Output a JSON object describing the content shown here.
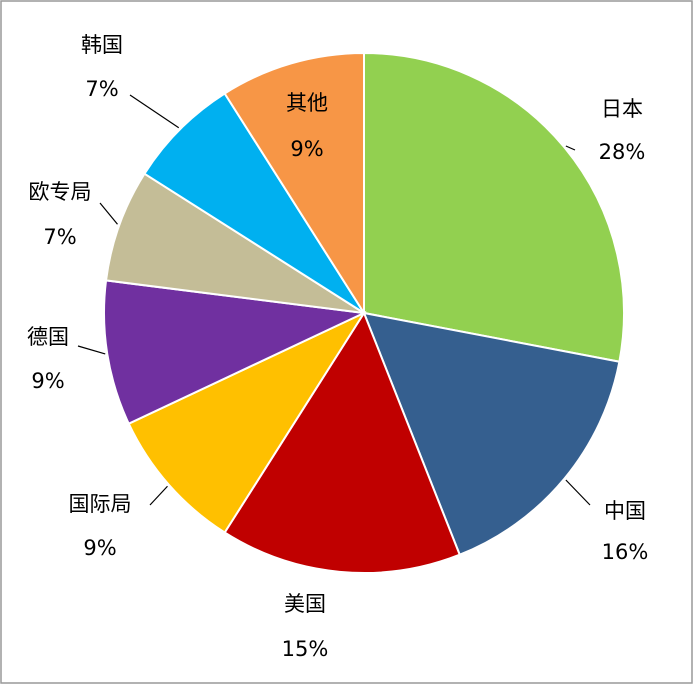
{
  "chart_data": {
    "type": "pie",
    "categories": [
      "日本",
      "中国",
      "美国",
      "国际局",
      "德国",
      "欧专局",
      "韩国",
      "其他"
    ],
    "values": [
      28,
      16,
      15,
      9,
      9,
      7,
      7,
      9
    ],
    "value_labels": [
      "28%",
      "16%",
      "15%",
      "9%",
      "9%",
      "7%",
      "7%",
      "9%"
    ],
    "colors": [
      "#92d050",
      "#355f8f",
      "#c00000",
      "#ffc000",
      "#7030a0",
      "#c4bd97",
      "#00b0f0",
      "#f79646"
    ]
  }
}
